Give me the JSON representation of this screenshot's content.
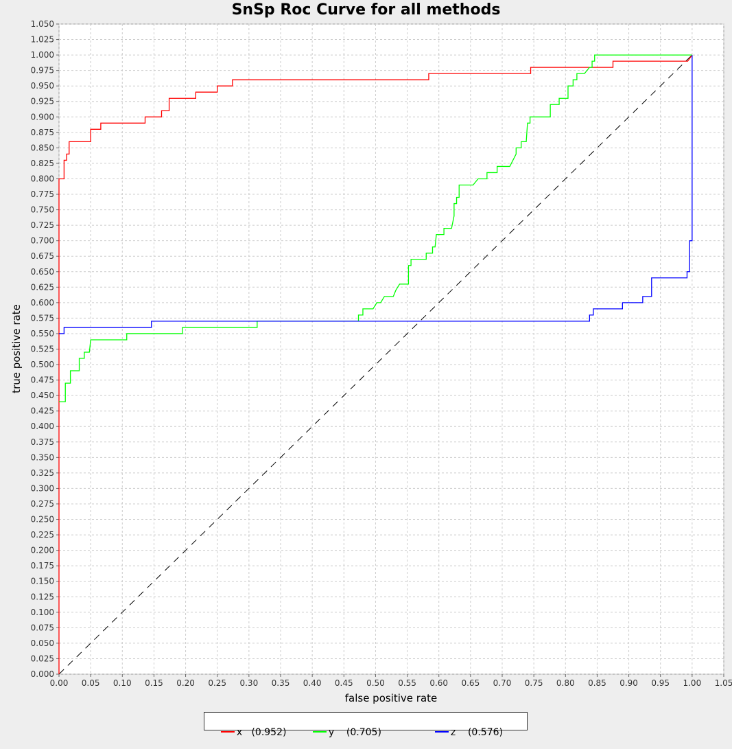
{
  "chart_data": {
    "type": "line",
    "title": "SnSp Roc Curve for all methods",
    "xlabel": "false positive rate",
    "ylabel": "true positive rate",
    "xlim": [
      0,
      1.05
    ],
    "ylim": [
      0,
      1.05
    ],
    "grid": true,
    "legend_position": "bottom",
    "x_ticks": [
      "0.00",
      "0.05",
      "0.10",
      "0.15",
      "0.20",
      "0.25",
      "0.30",
      "0.35",
      "0.40",
      "0.45",
      "0.50",
      "0.55",
      "0.60",
      "0.65",
      "0.70",
      "0.75",
      "0.80",
      "0.85",
      "0.90",
      "0.95",
      "1.00",
      "1.05"
    ],
    "y_ticks": [
      "0.000",
      "0.025",
      "0.050",
      "0.075",
      "0.100",
      "0.125",
      "0.150",
      "0.175",
      "0.200",
      "0.225",
      "0.250",
      "0.275",
      "0.300",
      "0.325",
      "0.350",
      "0.375",
      "0.400",
      "0.425",
      "0.450",
      "0.475",
      "0.500",
      "0.525",
      "0.550",
      "0.575",
      "0.600",
      "0.625",
      "0.650",
      "0.675",
      "0.700",
      "0.725",
      "0.750",
      "0.775",
      "0.800",
      "0.825",
      "0.850",
      "0.875",
      "0.900",
      "0.925",
      "0.950",
      "0.975",
      "1.000",
      "1.025",
      "1.050"
    ],
    "diagonal": {
      "from": [
        0,
        0
      ],
      "to": [
        1,
        1
      ],
      "color": "#000000"
    },
    "series": [
      {
        "name": "x",
        "legend_label": "x   (0.952)",
        "color": "#ff0000",
        "points": [
          [
            0,
            0
          ],
          [
            0,
            0.8
          ],
          [
            0.008,
            0.8
          ],
          [
            0.008,
            0.83
          ],
          [
            0.012,
            0.83
          ],
          [
            0.012,
            0.84
          ],
          [
            0.016,
            0.84
          ],
          [
            0.016,
            0.86
          ],
          [
            0.05,
            0.86
          ],
          [
            0.05,
            0.88
          ],
          [
            0.066,
            0.88
          ],
          [
            0.066,
            0.89
          ],
          [
            0.136,
            0.89
          ],
          [
            0.136,
            0.9
          ],
          [
            0.162,
            0.9
          ],
          [
            0.162,
            0.91
          ],
          [
            0.174,
            0.91
          ],
          [
            0.174,
            0.93
          ],
          [
            0.216,
            0.93
          ],
          [
            0.216,
            0.94
          ],
          [
            0.25,
            0.94
          ],
          [
            0.25,
            0.95
          ],
          [
            0.274,
            0.95
          ],
          [
            0.274,
            0.96
          ],
          [
            0.584,
            0.96
          ],
          [
            0.584,
            0.97
          ],
          [
            0.745,
            0.97
          ],
          [
            0.745,
            0.98
          ],
          [
            0.875,
            0.98
          ],
          [
            0.875,
            0.99
          ],
          [
            0.993,
            0.99
          ],
          [
            1.0,
            1.0
          ]
        ]
      },
      {
        "name": "y",
        "legend_label": "y    (0.705)",
        "color": "#00ff00",
        "points": [
          [
            0,
            0.44
          ],
          [
            0.01,
            0.44
          ],
          [
            0.01,
            0.47
          ],
          [
            0.018,
            0.47
          ],
          [
            0.018,
            0.49
          ],
          [
            0.032,
            0.49
          ],
          [
            0.032,
            0.51
          ],
          [
            0.04,
            0.51
          ],
          [
            0.04,
            0.52
          ],
          [
            0.048,
            0.52
          ],
          [
            0.05,
            0.54
          ],
          [
            0.107,
            0.54
          ],
          [
            0.107,
            0.55
          ],
          [
            0.195,
            0.55
          ],
          [
            0.195,
            0.56
          ],
          [
            0.313,
            0.56
          ],
          [
            0.313,
            0.57
          ],
          [
            0.473,
            0.57
          ],
          [
            0.473,
            0.58
          ],
          [
            0.48,
            0.58
          ],
          [
            0.48,
            0.59
          ],
          [
            0.496,
            0.59
          ],
          [
            0.502,
            0.6
          ],
          [
            0.508,
            0.6
          ],
          [
            0.514,
            0.61
          ],
          [
            0.528,
            0.61
          ],
          [
            0.532,
            0.62
          ],
          [
            0.538,
            0.63
          ],
          [
            0.552,
            0.63
          ],
          [
            0.552,
            0.66
          ],
          [
            0.556,
            0.66
          ],
          [
            0.556,
            0.67
          ],
          [
            0.58,
            0.67
          ],
          [
            0.58,
            0.68
          ],
          [
            0.59,
            0.68
          ],
          [
            0.59,
            0.69
          ],
          [
            0.594,
            0.69
          ],
          [
            0.596,
            0.71
          ],
          [
            0.608,
            0.71
          ],
          [
            0.608,
            0.72
          ],
          [
            0.62,
            0.72
          ],
          [
            0.624,
            0.74
          ],
          [
            0.624,
            0.76
          ],
          [
            0.628,
            0.76
          ],
          [
            0.628,
            0.77
          ],
          [
            0.632,
            0.77
          ],
          [
            0.632,
            0.79
          ],
          [
            0.654,
            0.79
          ],
          [
            0.662,
            0.8
          ],
          [
            0.676,
            0.8
          ],
          [
            0.676,
            0.81
          ],
          [
            0.692,
            0.81
          ],
          [
            0.692,
            0.82
          ],
          [
            0.712,
            0.82
          ],
          [
            0.722,
            0.84
          ],
          [
            0.722,
            0.85
          ],
          [
            0.73,
            0.85
          ],
          [
            0.73,
            0.86
          ],
          [
            0.738,
            0.86
          ],
          [
            0.74,
            0.89
          ],
          [
            0.744,
            0.89
          ],
          [
            0.744,
            0.9
          ],
          [
            0.776,
            0.9
          ],
          [
            0.776,
            0.92
          ],
          [
            0.79,
            0.92
          ],
          [
            0.79,
            0.93
          ],
          [
            0.804,
            0.93
          ],
          [
            0.804,
            0.95
          ],
          [
            0.812,
            0.95
          ],
          [
            0.812,
            0.96
          ],
          [
            0.818,
            0.96
          ],
          [
            0.818,
            0.97
          ],
          [
            0.83,
            0.97
          ],
          [
            0.838,
            0.98
          ],
          [
            0.842,
            0.98
          ],
          [
            0.842,
            0.99
          ],
          [
            0.846,
            0.99
          ],
          [
            0.846,
            1.0
          ],
          [
            1.0,
            1.0
          ]
        ]
      },
      {
        "name": "z",
        "legend_label": "z    (0.576)",
        "color": "#0000ff",
        "points": [
          [
            0,
            0.55
          ],
          [
            0.008,
            0.55
          ],
          [
            0.008,
            0.56
          ],
          [
            0.146,
            0.56
          ],
          [
            0.146,
            0.57
          ],
          [
            0.838,
            0.57
          ],
          [
            0.838,
            0.58
          ],
          [
            0.844,
            0.58
          ],
          [
            0.844,
            0.59
          ],
          [
            0.89,
            0.59
          ],
          [
            0.89,
            0.6
          ],
          [
            0.922,
            0.6
          ],
          [
            0.922,
            0.61
          ],
          [
            0.936,
            0.61
          ],
          [
            0.936,
            0.64
          ],
          [
            0.992,
            0.64
          ],
          [
            0.992,
            0.65
          ],
          [
            0.996,
            0.65
          ],
          [
            0.996,
            0.7
          ],
          [
            1.0,
            0.7
          ],
          [
            1.0,
            1.0
          ]
        ]
      }
    ]
  }
}
